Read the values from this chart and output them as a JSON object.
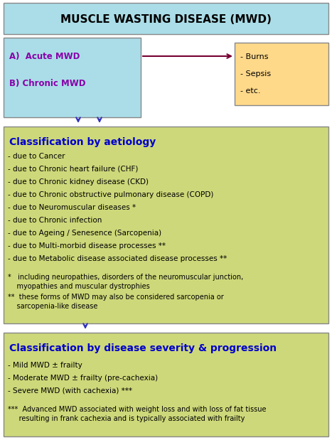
{
  "title": "MUSCLE WASTING DISEASE (MWD)",
  "title_bg": "#aadde8",
  "title_color": "#000000",
  "top_box_bg": "#aadde8",
  "top_box_border": "#888888",
  "top_box_text_a": "A)  Acute MWD",
  "top_box_text_b": "B) Chronic MWD",
  "top_box_text_color": "#8800aa",
  "burns_box_bg": "#ffd98a",
  "burns_box_border": "#888888",
  "burns_box_lines": [
    "- Burns",
    "- Sepsis",
    "- etc."
  ],
  "burns_box_text_color": "#000000",
  "arrow_color": "#770033",
  "mid_box_bg": "#cdd87a",
  "mid_box_border": "#888888",
  "mid_title": "Classification by aetiology",
  "mid_title_color": "#0000cc",
  "mid_lines": [
    "- due to Cancer",
    "- due to Chronic heart failure (CHF)",
    "- due to Chronic kidney disease (CKD)",
    "- due to Chronic obstructive pulmonary disease (COPD)",
    "- due to Neuromuscular diseases *",
    "- due to Chronic infection",
    "- due to Ageing / Senesence (Sarcopenia)",
    "- due to Multi-morbid disease processes **",
    "- due to Metabolic disease associated disease processes **"
  ],
  "mid_footnote1a": "*   including neuropathies, disorders of the neuromuscular junction,",
  "mid_footnote1b": "    myopathies and muscular dystrophies",
  "mid_footnote2a": "**  these forms of MWD may also be considered sarcopenia or",
  "mid_footnote2b": "    sarcopenia-like disease",
  "mid_text_color": "#000000",
  "bot_box_bg": "#cdd87a",
  "bot_box_border": "#888888",
  "bot_title": "Classification by disease severity & progression",
  "bot_title_color": "#0000cc",
  "bot_lines": [
    "- Mild MWD ± frailty",
    "- Moderate MWD ± frailty (pre-cachexia)",
    "- Severe MWD (with cachexia) ***"
  ],
  "bot_footnote1": "***  Advanced MWD associated with weight loss and with loss of fat tissue",
  "bot_footnote2": "     resulting in frank cachexia and is typically associated with frailty",
  "bot_text_color": "#000000",
  "vert_arrow_color": "#3333bb",
  "figsize": [
    4.67,
    6.19
  ],
  "dpi": 100
}
